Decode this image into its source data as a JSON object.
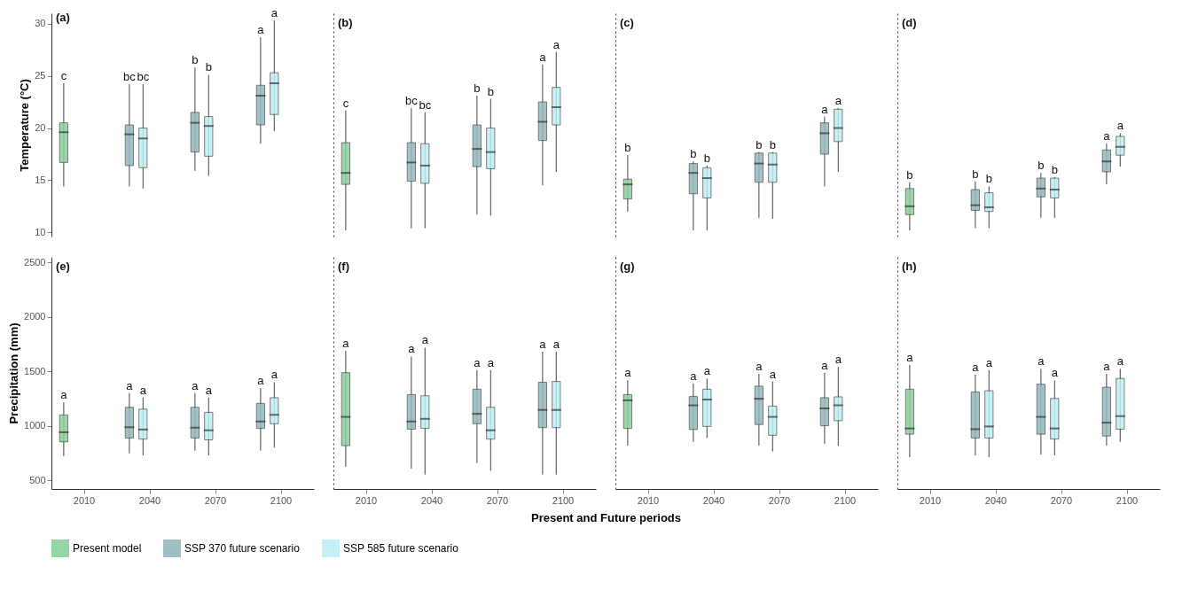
{
  "chart_data": [
    {
      "type": "box",
      "title": "(a)",
      "ylabel": "Temperature (°C)",
      "categories": [
        "2010",
        "2040",
        "2070",
        "2100"
      ],
      "ylim": [
        9.6,
        31
      ],
      "yticks": [
        10,
        15,
        20,
        25,
        30
      ],
      "grid": false,
      "legend": "bottom",
      "tick_labels": "y",
      "series": [
        {
          "name": "Present model",
          "color": "#8ccf9c",
          "boxes": [
            {
              "low": 14.4,
              "q1": 16.7,
              "median": 19.6,
              "q3": 20.5,
              "high": 24.3
            },
            null,
            null,
            null
          ],
          "value_labels": [
            "c",
            null,
            null,
            null
          ]
        },
        {
          "name": "SSP 370 future scenario",
          "color": "#93b8bc",
          "boxes": [
            null,
            {
              "low": 14.4,
              "q1": 16.4,
              "median": 19.4,
              "q3": 20.3,
              "high": 24.2
            },
            {
              "low": 15.9,
              "q1": 17.7,
              "median": 20.5,
              "q3": 21.5,
              "high": 25.8
            },
            {
              "low": 18.5,
              "q1": 20.3,
              "median": 23.1,
              "q3": 24.1,
              "high": 28.7
            }
          ],
          "value_labels": [
            null,
            "bc",
            "b",
            "a"
          ]
        },
        {
          "name": "SSP 585 future scenario",
          "color": "#bdeef3",
          "boxes": [
            null,
            {
              "low": 14.2,
              "q1": 16.2,
              "median": 19.0,
              "q3": 20.0,
              "high": 24.2
            },
            {
              "low": 15.4,
              "q1": 17.3,
              "median": 20.2,
              "q3": 21.1,
              "high": 25.1
            },
            {
              "low": 19.7,
              "q1": 21.3,
              "median": 24.3,
              "q3": 25.3,
              "high": 30.3
            }
          ],
          "value_labels": [
            null,
            "bc",
            "b",
            "a"
          ]
        }
      ]
    },
    {
      "type": "box",
      "title": "(b)",
      "categories": [
        "2010",
        "2040",
        "2070",
        "2100"
      ],
      "ylim": [
        9.6,
        31
      ],
      "yticks": [
        10,
        15,
        20,
        25,
        30
      ],
      "grid": false,
      "tick_labels": false,
      "series": [
        {
          "name": "Present model",
          "color": "#8ccf9c",
          "boxes": [
            {
              "low": 10.2,
              "q1": 14.6,
              "median": 15.7,
              "q3": 18.6,
              "high": 21.7
            },
            null,
            null,
            null
          ],
          "value_labels": [
            "c",
            null,
            null,
            null
          ]
        },
        {
          "name": "SSP 370 future scenario",
          "color": "#93b8bc",
          "boxes": [
            null,
            {
              "low": 10.4,
              "q1": 14.9,
              "median": 16.7,
              "q3": 18.6,
              "high": 21.9
            },
            {
              "low": 11.7,
              "q1": 16.3,
              "median": 18.0,
              "q3": 20.3,
              "high": 23.1
            },
            {
              "low": 14.5,
              "q1": 18.8,
              "median": 20.6,
              "q3": 22.5,
              "high": 26.1
            }
          ],
          "value_labels": [
            null,
            "bc",
            "b",
            "a"
          ]
        },
        {
          "name": "SSP 585 future scenario",
          "color": "#bdeef3",
          "boxes": [
            null,
            {
              "low": 10.4,
              "q1": 14.7,
              "median": 16.4,
              "q3": 18.5,
              "high": 21.5
            },
            {
              "low": 11.6,
              "q1": 16.1,
              "median": 17.7,
              "q3": 20.0,
              "high": 22.8
            },
            {
              "low": 15.8,
              "q1": 20.3,
              "median": 22.0,
              "q3": 23.9,
              "high": 27.3
            }
          ],
          "value_labels": [
            null,
            "bc",
            "b",
            "a"
          ]
        }
      ]
    },
    {
      "type": "box",
      "title": "(c)",
      "categories": [
        "2010",
        "2040",
        "2070",
        "2100"
      ],
      "ylim": [
        9.6,
        31
      ],
      "yticks": [
        10,
        15,
        20,
        25,
        30
      ],
      "grid": false,
      "tick_labels": false,
      "series": [
        {
          "name": "Present model",
          "color": "#8ccf9c",
          "boxes": [
            {
              "low": 12.0,
              "q1": 13.2,
              "median": 14.6,
              "q3": 15.1,
              "high": 17.4
            },
            null,
            null,
            null
          ],
          "value_labels": [
            "b",
            null,
            null,
            null
          ]
        },
        {
          "name": "SSP 370 future scenario",
          "color": "#93b8bc",
          "boxes": [
            null,
            {
              "low": 10.2,
              "q1": 13.7,
              "median": 15.7,
              "q3": 16.6,
              "high": 16.8
            },
            {
              "low": 11.4,
              "q1": 14.8,
              "median": 16.6,
              "q3": 17.6,
              "high": 17.7
            },
            {
              "low": 14.4,
              "q1": 17.5,
              "median": 19.5,
              "q3": 20.5,
              "high": 21.1
            }
          ],
          "value_labels": [
            null,
            "b",
            "b",
            "a"
          ]
        },
        {
          "name": "SSP 585 future scenario",
          "color": "#bdeef3",
          "boxes": [
            null,
            {
              "low": 10.2,
              "q1": 13.3,
              "median": 15.2,
              "q3": 16.2,
              "high": 16.4
            },
            {
              "low": 11.3,
              "q1": 14.8,
              "median": 16.5,
              "q3": 17.6,
              "high": 17.7
            },
            {
              "low": 15.8,
              "q1": 18.7,
              "median": 20.0,
              "q3": 21.8,
              "high": 21.9
            }
          ],
          "value_labels": [
            null,
            "b",
            "b",
            "a"
          ]
        }
      ]
    },
    {
      "type": "box",
      "title": "(d)",
      "categories": [
        "2010",
        "2040",
        "2070",
        "2100"
      ],
      "ylim": [
        9.6,
        31
      ],
      "yticks": [
        10,
        15,
        20,
        25,
        30
      ],
      "grid": false,
      "tick_labels": false,
      "series": [
        {
          "name": "Present model",
          "color": "#8ccf9c",
          "boxes": [
            {
              "low": 10.2,
              "q1": 11.7,
              "median": 12.5,
              "q3": 14.2,
              "high": 14.8
            },
            null,
            null,
            null
          ],
          "value_labels": [
            "b",
            null,
            null,
            null
          ]
        },
        {
          "name": "SSP 370 future scenario",
          "color": "#93b8bc",
          "boxes": [
            null,
            {
              "low": 10.4,
              "q1": 12.1,
              "median": 12.6,
              "q3": 14.1,
              "high": 14.9
            },
            {
              "low": 11.4,
              "q1": 13.4,
              "median": 14.2,
              "q3": 15.2,
              "high": 15.7
            },
            {
              "low": 14.6,
              "q1": 15.8,
              "median": 16.8,
              "q3": 17.9,
              "high": 18.5
            }
          ],
          "value_labels": [
            null,
            "b",
            "b",
            "a"
          ]
        },
        {
          "name": "SSP 585 future scenario",
          "color": "#bdeef3",
          "boxes": [
            null,
            {
              "low": 10.4,
              "q1": 12.0,
              "median": 12.4,
              "q3": 13.8,
              "high": 14.4
            },
            {
              "low": 11.4,
              "q1": 13.3,
              "median": 14.1,
              "q3": 15.2,
              "high": 15.3
            },
            {
              "low": 16.3,
              "q1": 17.4,
              "median": 18.2,
              "q3": 19.2,
              "high": 19.5
            }
          ],
          "value_labels": [
            null,
            "b",
            "b",
            "a"
          ]
        }
      ]
    },
    {
      "type": "box",
      "title": "(e)",
      "ylabel": "Precipitation (mm)",
      "categories": [
        "2010",
        "2040",
        "2070",
        "2100"
      ],
      "ylim": [
        420,
        2550
      ],
      "yticks": [
        500,
        1000,
        1500,
        2000,
        2500
      ],
      "grid": false,
      "series": [
        {
          "name": "Present model",
          "color": "#8ccf9c",
          "boxes": [
            {
              "low": 722,
              "q1": 853,
              "median": 941,
              "q3": 1100,
              "high": 1216
            },
            null,
            null,
            null
          ],
          "value_labels": [
            "a",
            null,
            null,
            null
          ]
        },
        {
          "name": "SSP 370 future scenario",
          "color": "#93b8bc",
          "boxes": [
            null,
            {
              "low": 747,
              "q1": 888,
              "median": 987,
              "q3": 1170,
              "high": 1301
            },
            {
              "low": 772,
              "q1": 888,
              "median": 983,
              "q3": 1170,
              "high": 1301
            },
            {
              "low": 772,
              "q1": 976,
              "median": 1040,
              "q3": 1206,
              "high": 1347
            }
          ],
          "value_labels": [
            null,
            "a",
            "a",
            "a"
          ]
        },
        {
          "name": "SSP 585 future scenario",
          "color": "#bdeef3",
          "boxes": [
            null,
            {
              "low": 729,
              "q1": 878,
              "median": 966,
              "q3": 1153,
              "high": 1258
            },
            {
              "low": 729,
              "q1": 871,
              "median": 959,
              "q3": 1124,
              "high": 1258
            },
            {
              "low": 800,
              "q1": 1019,
              "median": 1100,
              "q3": 1258,
              "high": 1400
            }
          ],
          "value_labels": [
            null,
            "a",
            "a",
            "a"
          ]
        }
      ]
    },
    {
      "type": "box",
      "title": "(f)",
      "xlabel": "Present and Future periods",
      "categories": [
        "2010",
        "2040",
        "2070",
        "2100"
      ],
      "ylim": [
        420,
        2550
      ],
      "yticks": [
        500,
        1000,
        1500,
        2000,
        2500
      ],
      "grid": false,
      "tick_labels": "x",
      "series": [
        {
          "name": "Present model",
          "color": "#8ccf9c",
          "boxes": [
            {
              "low": 624,
              "q1": 818,
              "median": 1082,
              "q3": 1488,
              "high": 1689
            },
            null,
            null,
            null
          ],
          "value_labels": [
            "a",
            null,
            null,
            null
          ]
        },
        {
          "name": "SSP 370 future scenario",
          "color": "#93b8bc",
          "boxes": [
            null,
            {
              "low": 606,
              "q1": 969,
              "median": 1040,
              "q3": 1287,
              "high": 1636
            },
            {
              "low": 659,
              "q1": 1019,
              "median": 1110,
              "q3": 1336,
              "high": 1512
            },
            {
              "low": 553,
              "q1": 983,
              "median": 1146,
              "q3": 1400,
              "high": 1682
            }
          ],
          "value_labels": [
            null,
            "a",
            "a",
            "a"
          ]
        },
        {
          "name": "SSP 585 future scenario",
          "color": "#bdeef3",
          "boxes": [
            null,
            {
              "low": 553,
              "q1": 976,
              "median": 1064,
              "q3": 1276,
              "high": 1717
            },
            {
              "low": 588,
              "q1": 878,
              "median": 959,
              "q3": 1170,
              "high": 1512
            },
            {
              "low": 553,
              "q1": 983,
              "median": 1146,
              "q3": 1407,
              "high": 1682
            }
          ],
          "value_labels": [
            null,
            "a",
            "a",
            "a"
          ]
        }
      ]
    },
    {
      "type": "box",
      "title": "(g)",
      "categories": [
        "2010",
        "2040",
        "2070",
        "2100"
      ],
      "ylim": [
        420,
        2550
      ],
      "yticks": [
        500,
        1000,
        1500,
        2000,
        2500
      ],
      "grid": false,
      "tick_labels": "x",
      "series": [
        {
          "name": "Present model",
          "color": "#8ccf9c",
          "boxes": [
            {
              "low": 818,
              "q1": 976,
              "median": 1234,
              "q3": 1287,
              "high": 1417
            },
            null,
            null,
            null
          ],
          "value_labels": [
            "a",
            null,
            null,
            null
          ]
        },
        {
          "name": "SSP 370 future scenario",
          "color": "#93b8bc",
          "boxes": [
            null,
            {
              "low": 853,
              "q1": 966,
              "median": 1188,
              "q3": 1269,
              "high": 1389
            },
            {
              "low": 818,
              "q1": 1012,
              "median": 1248,
              "q3": 1364,
              "high": 1477
            },
            {
              "low": 835,
              "q1": 1001,
              "median": 1160,
              "q3": 1258,
              "high": 1488
            }
          ],
          "value_labels": [
            null,
            "a",
            "a",
            "a"
          ]
        },
        {
          "name": "SSP 585 future scenario",
          "color": "#bdeef3",
          "boxes": [
            null,
            {
              "low": 888,
              "q1": 994,
              "median": 1241,
              "q3": 1336,
              "high": 1435
            },
            {
              "low": 765,
              "q1": 913,
              "median": 1082,
              "q3": 1181,
              "high": 1407
            },
            {
              "low": 818,
              "q1": 1047,
              "median": 1188,
              "q3": 1266,
              "high": 1541
            }
          ],
          "value_labels": [
            null,
            "a",
            "a",
            "a"
          ]
        }
      ]
    },
    {
      "type": "box",
      "title": "(h)",
      "categories": [
        "2010",
        "2040",
        "2070",
        "2100"
      ],
      "ylim": [
        420,
        2550
      ],
      "yticks": [
        500,
        1000,
        1500,
        2000,
        2500
      ],
      "grid": false,
      "tick_labels": "x",
      "series": [
        {
          "name": "Present model",
          "color": "#8ccf9c",
          "boxes": [
            {
              "low": 712,
              "q1": 923,
              "median": 976,
              "q3": 1336,
              "high": 1559
            },
            null,
            null,
            null
          ],
          "value_labels": [
            "a",
            null,
            null,
            null
          ]
        },
        {
          "name": "SSP 370 future scenario",
          "color": "#93b8bc",
          "boxes": [
            null,
            {
              "low": 729,
              "q1": 888,
              "median": 969,
              "q3": 1311,
              "high": 1470
            },
            {
              "low": 736,
              "q1": 923,
              "median": 1082,
              "q3": 1382,
              "high": 1523
            },
            {
              "low": 818,
              "q1": 906,
              "median": 1029,
              "q3": 1354,
              "high": 1477
            }
          ],
          "value_labels": [
            null,
            "a",
            "a",
            "a"
          ]
        },
        {
          "name": "SSP 585 future scenario",
          "color": "#bdeef3",
          "boxes": [
            null,
            {
              "low": 712,
              "q1": 888,
              "median": 994,
              "q3": 1322,
              "high": 1512
            },
            {
              "low": 729,
              "q1": 878,
              "median": 976,
              "q3": 1251,
              "high": 1417
            },
            {
              "low": 853,
              "q1": 969,
              "median": 1089,
              "q3": 1435,
              "high": 1523
            }
          ],
          "value_labels": [
            null,
            "a",
            "a",
            "a"
          ]
        }
      ]
    }
  ]
}
